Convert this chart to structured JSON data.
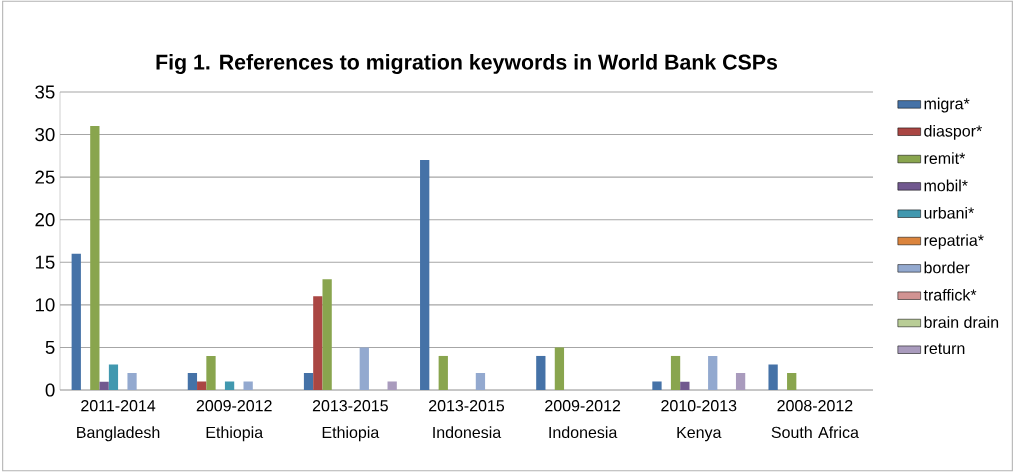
{
  "chart_data": {
    "type": "bar",
    "title": "Fig 1. References to migration keywords in World Bank CSPs",
    "categories": [
      "2011-2014 Bangladesh",
      "2009-2012 Ethiopia",
      "2013-2015 Ethiopia",
      "2013-2015 Indonesia",
      "2009-2012 Indonesia",
      "2010-2013 Kenya",
      "2008-2012 South Africa"
    ],
    "series": [
      {
        "name": "migra*",
        "color": "#4572a7",
        "values": [
          16,
          2,
          2,
          27,
          4,
          1,
          3
        ]
      },
      {
        "name": "diaspor*",
        "color": "#aa4643",
        "values": [
          0,
          1,
          11,
          0,
          0,
          0,
          0
        ]
      },
      {
        "name": "remit*",
        "color": "#89a54e",
        "values": [
          31,
          4,
          13,
          4,
          5,
          4,
          2
        ]
      },
      {
        "name": "mobil*",
        "color": "#71588f",
        "values": [
          1,
          0,
          0,
          0,
          0,
          1,
          0
        ]
      },
      {
        "name": "urbani*",
        "color": "#4198af",
        "values": [
          3,
          1,
          0,
          0,
          0,
          0,
          0
        ]
      },
      {
        "name": "repatria*",
        "color": "#db843d",
        "values": [
          0,
          0,
          0,
          0,
          0,
          0,
          0
        ]
      },
      {
        "name": "border",
        "color": "#93a9cf",
        "values": [
          2,
          1,
          5,
          2,
          0,
          4,
          0
        ]
      },
      {
        "name": "traffick*",
        "color": "#d19392",
        "values": [
          0,
          0,
          0,
          0,
          0,
          0,
          0
        ]
      },
      {
        "name": "brain drain",
        "color": "#b9cd96",
        "values": [
          0,
          0,
          0,
          0,
          0,
          0,
          0
        ]
      },
      {
        "name": "return",
        "color": "#a99bbd",
        "values": [
          0,
          0,
          1,
          0,
          0,
          2,
          0
        ]
      }
    ],
    "ylim": [
      0,
      35
    ],
    "yticks": [
      0,
      5,
      10,
      15,
      20,
      25,
      30,
      35
    ],
    "grid": "y",
    "legend": "right"
  }
}
